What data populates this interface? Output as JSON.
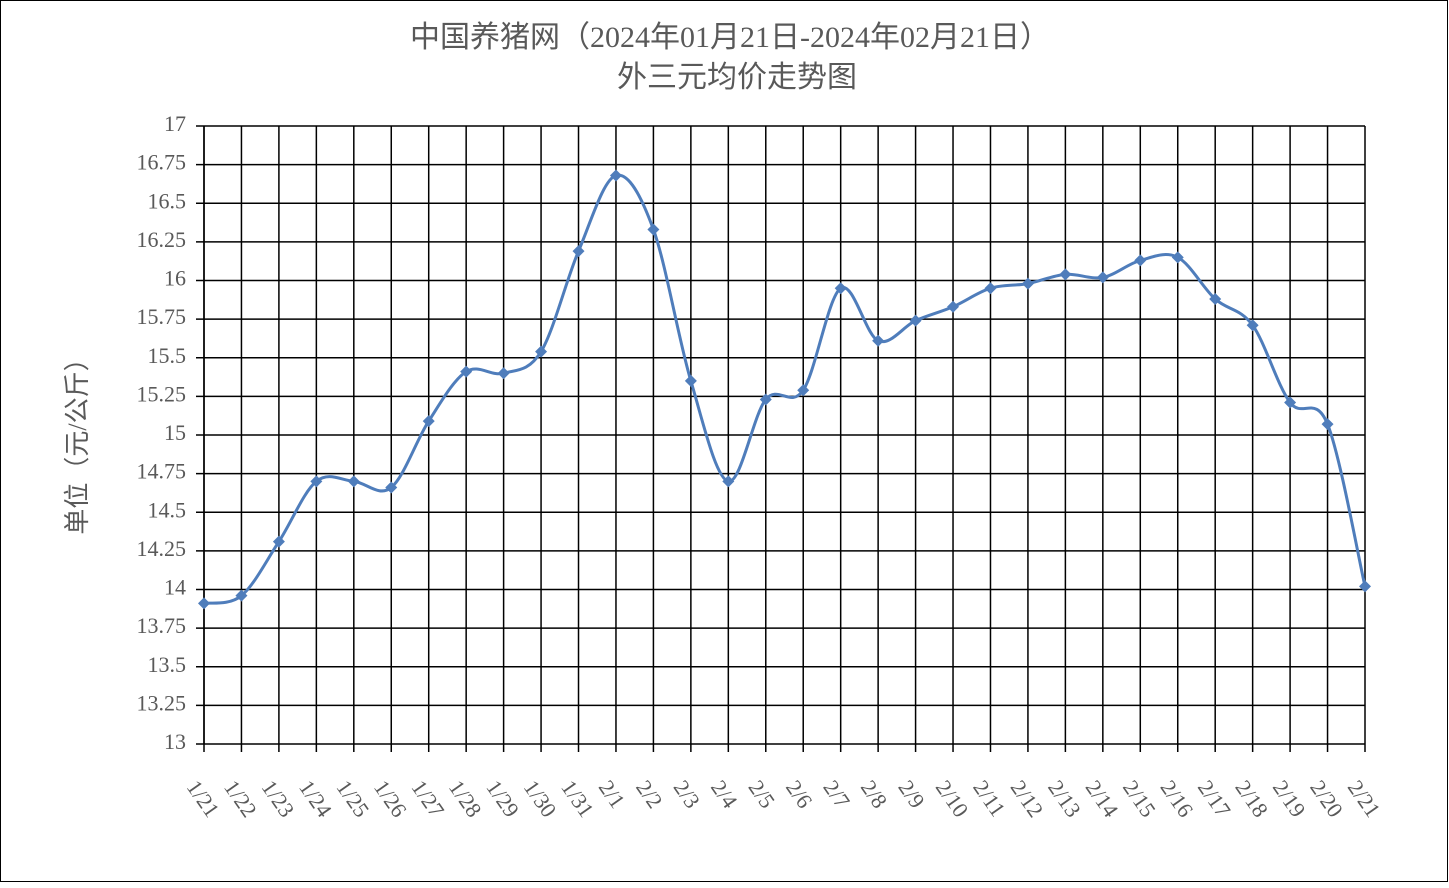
{
  "chart_data": {
    "type": "line",
    "title": "中国养猪网（2024年01月21日-2024年02月21日）",
    "subtitle": "外三元均价走势图",
    "y_label": "单位（元/公斤）",
    "categories": [
      "1/21",
      "1/22",
      "1/23",
      "1/24",
      "1/25",
      "1/26",
      "1/27",
      "1/28",
      "1/29",
      "1/30",
      "1/31",
      "2/1",
      "2/2",
      "2/3",
      "2/4",
      "2/5",
      "2/6",
      "2/7",
      "2/8",
      "2/9",
      "2/10",
      "2/11",
      "2/12",
      "2/13",
      "2/14",
      "2/15",
      "2/16",
      "2/17",
      "2/18",
      "2/19",
      "2/20",
      "2/21"
    ],
    "values": [
      13.91,
      13.96,
      14.31,
      14.7,
      14.7,
      14.66,
      15.09,
      15.41,
      15.4,
      15.54,
      16.19,
      16.68,
      16.33,
      15.35,
      14.7,
      15.23,
      15.29,
      15.95,
      15.61,
      15.74,
      15.83,
      15.95,
      15.98,
      16.04,
      16.02,
      16.13,
      16.15,
      15.88,
      15.71,
      15.21,
      15.07,
      14.02
    ],
    "color": "#4f7dbb",
    "ylim": [
      13,
      17
    ],
    "yticks": [
      13,
      13.25,
      13.5,
      13.75,
      14,
      14.25,
      14.5,
      14.75,
      15,
      15.25,
      15.5,
      15.75,
      16,
      16.25,
      16.5,
      16.75,
      17
    ],
    "grid": true,
    "smooth": true
  }
}
